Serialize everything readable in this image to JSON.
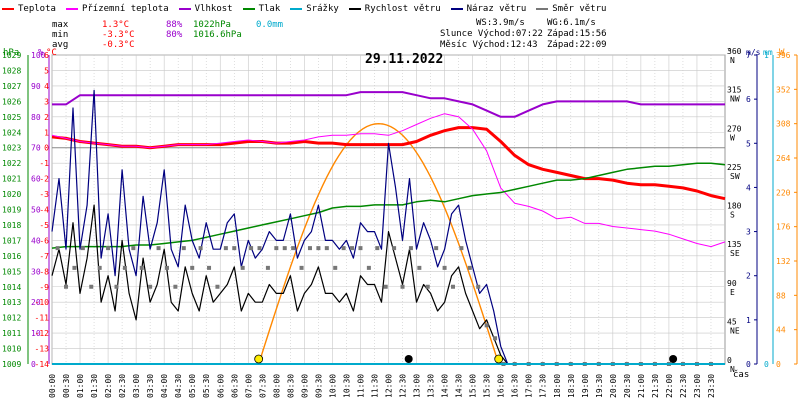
{
  "legend": [
    {
      "label": "Teplota",
      "color": "#ff0000"
    },
    {
      "label": "Přízemní teplota",
      "color": "#ff00ff"
    },
    {
      "label": "Vlhkost",
      "color": "#9900cc"
    },
    {
      "label": "Tlak",
      "color": "#008800"
    },
    {
      "label": "Srážky",
      "color": "#00aacc"
    },
    {
      "label": "Rychlost větru",
      "color": "#000000"
    },
    {
      "label": "Náraz větru",
      "color": "#000080"
    },
    {
      "label": "Směr větru",
      "color": "#777777"
    }
  ],
  "stats": {
    "max_label": "max",
    "min_label": "min",
    "avg_label": "avg",
    "max_temp": "1.3°C",
    "max_hum": "88%",
    "max_press": "1022hPa",
    "max_precip": "0.0mm",
    "min_temp": "-3.3°C",
    "min_hum": "80%",
    "min_press": "1016.6hPa",
    "avg_temp": "-0.3°C"
  },
  "info": {
    "ws": "WS:3.9m/s",
    "wg": "WG:6.1m/s",
    "sunrise": "Slunce Východ:07:22",
    "sunset": "Západ:15:56",
    "moonrise": "Měsíc  Východ:12:43",
    "moonset": "Západ:22:09"
  },
  "date": "29.11.2022",
  "x_axis_label": "čas",
  "axis_headers": {
    "hpa": "hPa",
    "pct": "%",
    "degc": "°C",
    "deg": "°",
    "ms": "m/s",
    "mm": "mm",
    "wm2": "W"
  },
  "colors": {
    "temp": "#ff0000",
    "ground": "#ff00ff",
    "hum": "#9900cc",
    "press": "#008800",
    "precip": "#00aacc",
    "wind": "#000000",
    "gust": "#000080",
    "dir": "#777777",
    "solar": "#ff8800",
    "grid": "#c8c8c8"
  },
  "chart_data": {
    "type": "line",
    "title": "29.11.2022",
    "x_unit": "hour",
    "x_ticks": [
      "00:00",
      "00:30",
      "01:00",
      "01:30",
      "02:00",
      "02:30",
      "03:00",
      "03:30",
      "04:00",
      "04:30",
      "05:00",
      "05:30",
      "06:00",
      "06:30",
      "07:00",
      "07:30",
      "08:00",
      "08:30",
      "09:00",
      "09:30",
      "10:00",
      "10:30",
      "11:00",
      "11:30",
      "12:00",
      "12:30",
      "13:00",
      "13:30",
      "14:00",
      "14:30",
      "15:00",
      "15:30",
      "16:00",
      "16:30",
      "17:00",
      "17:30",
      "18:00",
      "18:30",
      "19:00",
      "19:30",
      "20:00",
      "20:30",
      "21:00",
      "21:30",
      "22:00",
      "22:30",
      "23:00",
      "23:30"
    ],
    "axes": {
      "pressure_hpa": {
        "min": 1009,
        "max": 1029,
        "ticks": [
          1009,
          1010,
          1011,
          1012,
          1013,
          1014,
          1015,
          1016,
          1017,
          1018,
          1019,
          1020,
          1021,
          1022,
          1023,
          1024,
          1025,
          1026,
          1027,
          1028,
          1029
        ]
      },
      "humidity_pct": {
        "min": 0,
        "max": 100,
        "ticks": [
          0,
          10,
          20,
          30,
          40,
          50,
          60,
          70,
          80,
          90,
          100
        ]
      },
      "temperature_c": {
        "min": -14,
        "max": 6,
        "ticks": [
          -14,
          -13,
          -12,
          -11,
          -10,
          -9,
          -8,
          -7,
          -6,
          -5,
          -4,
          -3,
          -2,
          -1,
          0,
          1,
          2,
          3,
          4,
          5,
          6
        ]
      },
      "wind_direction_deg": {
        "min": 0,
        "max": 360,
        "ticks": [
          0,
          45,
          90,
          135,
          180,
          225,
          270,
          315,
          360
        ],
        "names": [
          "N",
          "NE",
          "E",
          "SE",
          "S",
          "SW",
          "W",
          "NW",
          "N"
        ]
      },
      "wind_speed_ms": {
        "min": 0,
        "max": 7,
        "ticks": [
          0,
          1,
          2,
          3,
          4,
          5,
          6,
          7
        ]
      },
      "precip_mm": {
        "min": 0,
        "max": 1,
        "ticks": [
          0,
          1
        ]
      },
      "solar_wm2": {
        "min": 0,
        "max": 396,
        "ticks": [
          0,
          44,
          88,
          132,
          176,
          220,
          264,
          308,
          352,
          396
        ]
      }
    },
    "series": [
      {
        "name": "Teplota",
        "axis": "temperature_c",
        "x": [
          0,
          0.5,
          1,
          1.5,
          2,
          2.5,
          3,
          3.5,
          4,
          4.5,
          5,
          5.5,
          6,
          6.5,
          7,
          7.5,
          8,
          8.5,
          9,
          9.5,
          10,
          10.5,
          11,
          11.5,
          12,
          12.5,
          13,
          13.5,
          14,
          14.5,
          15,
          15.5,
          16,
          16.5,
          17,
          17.5,
          18,
          18.5,
          19,
          19.5,
          20,
          20.5,
          21,
          21.5,
          22,
          22.5,
          23,
          23.5,
          24
        ],
        "y": [
          0.7,
          0.6,
          0.4,
          0.3,
          0.2,
          0.1,
          0.1,
          0,
          0.1,
          0.2,
          0.2,
          0.2,
          0.2,
          0.3,
          0.4,
          0.4,
          0.3,
          0.3,
          0.4,
          0.3,
          0.3,
          0.2,
          0.2,
          0.2,
          0.2,
          0.2,
          0.4,
          0.8,
          1.1,
          1.3,
          1.3,
          1.2,
          0.4,
          -0.5,
          -1.1,
          -1.4,
          -1.6,
          -1.8,
          -2,
          -2,
          -2.1,
          -2.3,
          -2.4,
          -2.4,
          -2.5,
          -2.6,
          -2.8,
          -3.1,
          -3.3
        ]
      },
      {
        "name": "Přízemní teplota",
        "axis": "temperature_c",
        "x": [
          0,
          0.5,
          1,
          1.5,
          2,
          2.5,
          3,
          3.5,
          4,
          4.5,
          5,
          5.5,
          6,
          6.5,
          7,
          7.5,
          8,
          8.5,
          9,
          9.5,
          10,
          10.5,
          11,
          11.5,
          12,
          12.5,
          13,
          13.5,
          14,
          14.5,
          15,
          15.5,
          16,
          16.5,
          17,
          17.5,
          18,
          18.5,
          19,
          19.5,
          20,
          20.5,
          21,
          21.5,
          22,
          22.5,
          23,
          23.5,
          24
        ],
        "y": [
          0.8,
          0.6,
          0.4,
          0.3,
          0.2,
          0.1,
          0.1,
          0,
          0.1,
          0.2,
          0.2,
          0.2,
          0.3,
          0.4,
          0.5,
          0.4,
          0.3,
          0.4,
          0.5,
          0.7,
          0.8,
          0.8,
          0.9,
          0.9,
          0.8,
          1.1,
          1.5,
          1.9,
          2.2,
          2.0,
          1.2,
          -0.2,
          -2.6,
          -3.6,
          -3.8,
          -4.1,
          -4.6,
          -4.5,
          -4.9,
          -4.9,
          -5.1,
          -5.2,
          -5.3,
          -5.4,
          -5.6,
          -5.9,
          -6.2,
          -6.4,
          -6.1
        ]
      },
      {
        "name": "Vlhkost",
        "axis": "humidity_pct",
        "x": [
          0,
          0.5,
          1,
          1.5,
          2,
          2.5,
          3,
          3.5,
          4,
          4.5,
          5,
          5.5,
          6,
          6.5,
          7,
          7.5,
          8,
          8.5,
          9,
          9.5,
          10,
          10.5,
          11,
          11.5,
          12,
          12.5,
          13,
          13.5,
          14,
          14.5,
          15,
          15.5,
          16,
          16.5,
          17,
          17.5,
          18,
          18.5,
          19,
          19.5,
          20,
          20.5,
          21,
          21.5,
          22,
          22.5,
          23,
          23.5,
          24
        ],
        "y": [
          84,
          84,
          87,
          87,
          87,
          87,
          87,
          87,
          87,
          87,
          87,
          87,
          87,
          87,
          87,
          87,
          87,
          87,
          87,
          87,
          87,
          87,
          88,
          88,
          88,
          88,
          87,
          86,
          86,
          85,
          84,
          82,
          80,
          80,
          82,
          84,
          85,
          85,
          85,
          85,
          85,
          85,
          84,
          84,
          84,
          84,
          84,
          84,
          84
        ]
      },
      {
        "name": "Tlak",
        "axis": "pressure_hpa",
        "x": [
          0,
          0.5,
          1,
          1.5,
          2,
          2.5,
          3,
          3.5,
          4,
          4.5,
          5,
          5.5,
          6,
          6.5,
          7,
          7.5,
          8,
          8.5,
          9,
          9.5,
          10,
          10.5,
          11,
          11.5,
          12,
          12.5,
          13,
          13.5,
          14,
          14.5,
          15,
          15.5,
          16,
          16.5,
          17,
          17.5,
          18,
          18.5,
          19,
          19.5,
          20,
          20.5,
          21,
          21.5,
          22,
          22.5,
          23,
          23.5,
          24
        ],
        "y": [
          1016.5,
          1016.6,
          1016.6,
          1016.6,
          1016.6,
          1016.6,
          1016.7,
          1016.7,
          1016.8,
          1016.9,
          1017.0,
          1017.2,
          1017.4,
          1017.6,
          1017.8,
          1018.0,
          1018.2,
          1018.4,
          1018.6,
          1018.8,
          1019.1,
          1019.2,
          1019.2,
          1019.3,
          1019.3,
          1019.3,
          1019.5,
          1019.6,
          1019.5,
          1019.7,
          1019.9,
          1020.0,
          1020.1,
          1020.3,
          1020.5,
          1020.7,
          1020.9,
          1020.9,
          1021.0,
          1021.2,
          1021.4,
          1021.6,
          1021.7,
          1021.8,
          1021.8,
          1021.9,
          1022.0,
          1022.0,
          1021.9
        ]
      },
      {
        "name": "Rychlost větru",
        "axis": "wind_speed_ms",
        "x": [
          0,
          0.25,
          0.5,
          0.75,
          1,
          1.25,
          1.5,
          1.75,
          2,
          2.25,
          2.5,
          2.75,
          3,
          3.25,
          3.5,
          3.75,
          4,
          4.25,
          4.5,
          4.75,
          5,
          5.25,
          5.5,
          5.75,
          6,
          6.25,
          6.5,
          6.75,
          7,
          7.25,
          7.5,
          7.75,
          8,
          8.25,
          8.5,
          8.75,
          9,
          9.25,
          9.5,
          9.75,
          10,
          10.25,
          10.5,
          10.75,
          11,
          11.25,
          11.5,
          11.75,
          12,
          12.25,
          12.5,
          12.75,
          13,
          13.25,
          13.5,
          13.75,
          14,
          14.25,
          14.5,
          14.75,
          15,
          15.25,
          15.5,
          15.75,
          16,
          16.25,
          16.5
        ],
        "y": [
          2.0,
          2.6,
          1.8,
          3.2,
          1.6,
          2.4,
          3.6,
          1.4,
          2.0,
          1.2,
          2.8,
          1.6,
          1.0,
          2.4,
          1.4,
          1.8,
          2.6,
          1.4,
          1.2,
          2.2,
          1.6,
          1.2,
          2.0,
          1.4,
          1.6,
          1.8,
          2.2,
          1.2,
          1.6,
          1.4,
          1.4,
          1.8,
          1.6,
          1.6,
          2.0,
          1.2,
          1.6,
          1.8,
          2.2,
          1.6,
          1.6,
          1.4,
          1.6,
          1.2,
          2.0,
          1.8,
          1.8,
          1.4,
          3.0,
          2.4,
          1.8,
          2.6,
          1.4,
          1.8,
          1.6,
          1.2,
          1.4,
          2.0,
          2.2,
          1.6,
          1.2,
          0.8,
          1.0,
          0.6,
          0.2,
          0,
          0
        ]
      },
      {
        "name": "Náraz větru",
        "axis": "wind_speed_ms",
        "x": [
          0,
          0.25,
          0.5,
          0.75,
          1,
          1.25,
          1.5,
          1.75,
          2,
          2.25,
          2.5,
          2.75,
          3,
          3.25,
          3.5,
          3.75,
          4,
          4.25,
          4.5,
          4.75,
          5,
          5.25,
          5.5,
          5.75,
          6,
          6.25,
          6.5,
          6.75,
          7,
          7.25,
          7.5,
          7.75,
          8,
          8.25,
          8.5,
          8.75,
          9,
          9.25,
          9.5,
          9.75,
          10,
          10.25,
          10.5,
          10.75,
          11,
          11.25,
          11.5,
          11.75,
          12,
          12.25,
          12.5,
          12.75,
          13,
          13.25,
          13.5,
          13.75,
          14,
          14.25,
          14.5,
          14.75,
          15,
          15.25,
          15.5,
          15.75,
          16,
          16.25,
          16.5
        ],
        "y": [
          3.0,
          4.2,
          2.6,
          5.8,
          2.6,
          3.6,
          6.2,
          2.4,
          3.4,
          2.0,
          4.4,
          2.6,
          2.0,
          3.8,
          2.6,
          3.2,
          4.4,
          2.6,
          2.2,
          3.6,
          2.8,
          2.4,
          3.2,
          2.6,
          2.6,
          3.2,
          3.4,
          2.2,
          2.8,
          2.4,
          2.6,
          3.0,
          2.8,
          2.8,
          3.4,
          2.4,
          2.8,
          3.0,
          3.6,
          2.8,
          2.8,
          2.6,
          2.8,
          2.4,
          3.2,
          3.0,
          3.0,
          2.6,
          5.0,
          4.0,
          2.8,
          4.2,
          2.6,
          3.2,
          2.8,
          2.2,
          2.6,
          3.4,
          3.6,
          2.8,
          2.2,
          1.6,
          1.8,
          1.2,
          0.4,
          0,
          0
        ]
      },
      {
        "name": "Směr větru",
        "axis": "wind_direction_deg",
        "style": "points",
        "x": [
          0.2,
          0.5,
          0.8,
          1.1,
          1.4,
          1.7,
          2.0,
          2.3,
          2.6,
          2.9,
          3.2,
          3.5,
          3.8,
          4.1,
          4.4,
          4.7,
          5.0,
          5.3,
          5.6,
          5.9,
          6.2,
          6.5,
          6.8,
          7.1,
          7.4,
          7.7,
          8.0,
          8.3,
          8.6,
          8.9,
          9.2,
          9.5,
          9.8,
          10.1,
          10.4,
          10.7,
          11.0,
          11.3,
          11.6,
          11.9,
          12.2,
          12.5,
          12.8,
          13.1,
          13.4,
          13.7,
          14.0,
          14.3,
          14.6,
          14.9,
          15.2,
          15.5,
          15.8,
          16.1,
          16.5,
          17.0,
          17.5,
          18.0,
          18.5,
          19.0,
          19.5,
          20.0,
          20.5,
          21.0,
          21.5,
          22.0,
          22.5,
          23.0,
          23.5
        ],
        "y": [
          135,
          90,
          112,
          135,
          90,
          112,
          135,
          90,
          112,
          135,
          112,
          90,
          135,
          112,
          90,
          135,
          112,
          135,
          112,
          90,
          135,
          135,
          112,
          135,
          135,
          112,
          135,
          135,
          135,
          112,
          135,
          135,
          135,
          112,
          135,
          135,
          135,
          112,
          135,
          90,
          135,
          90,
          135,
          112,
          90,
          135,
          112,
          90,
          135,
          112,
          90,
          45,
          30,
          0,
          0,
          0,
          0,
          0,
          0,
          0,
          0,
          0,
          0,
          0,
          0,
          0,
          0,
          0,
          0
        ]
      },
      {
        "name": "Srážky",
        "axis": "precip_mm",
        "x": [
          0,
          24
        ],
        "y": [
          0,
          0
        ]
      }
    ],
    "sun_markers": [
      7.37,
      15.93
    ],
    "moon_markers": [
      12.72,
      22.15
    ]
  }
}
